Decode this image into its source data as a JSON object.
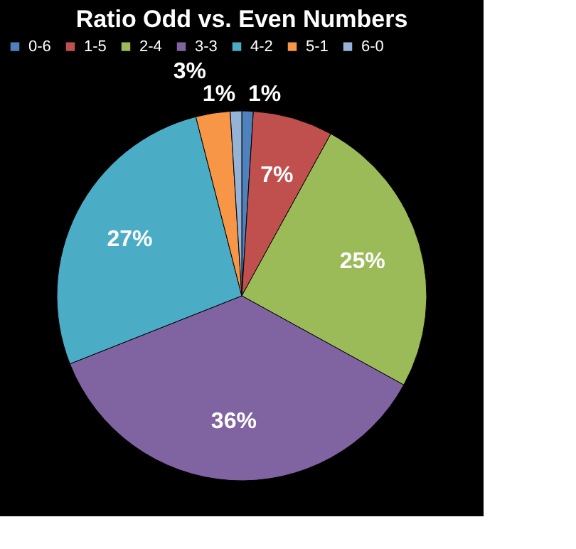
{
  "chart_data": {
    "type": "pie",
    "title": "Ratio Odd vs. Even Numbers",
    "categories": [
      "0-6",
      "1-5",
      "2-4",
      "3-3",
      "4-2",
      "5-1",
      "6-0"
    ],
    "values": [
      1,
      7,
      25,
      36,
      27,
      3,
      1
    ],
    "colors": [
      "#4f81bd",
      "#c0504d",
      "#9bbb59",
      "#8064a2",
      "#4bacc6",
      "#f79646",
      "#95b3d7"
    ],
    "value_labels": [
      "1%",
      "7%",
      "25%",
      "36%",
      "27%",
      "3%",
      "1%"
    ],
    "legend": "top"
  }
}
